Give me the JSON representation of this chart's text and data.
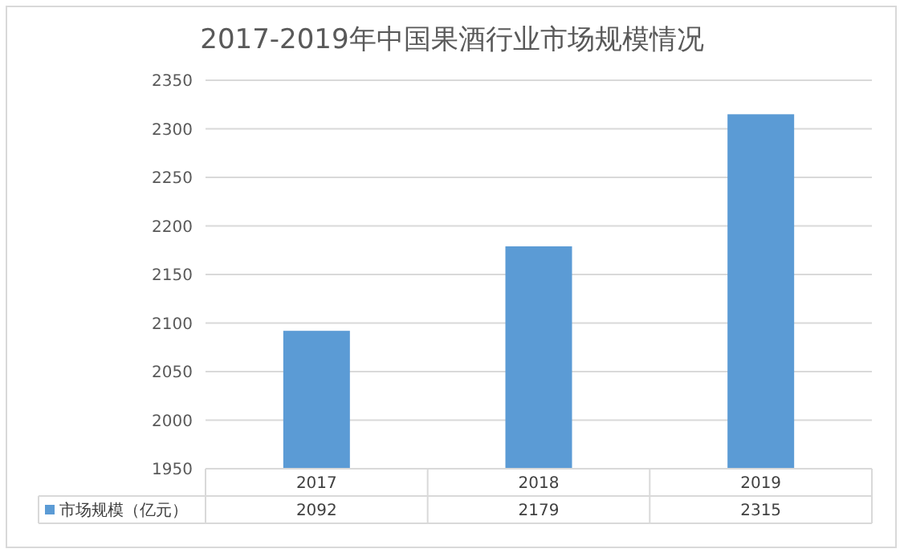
{
  "chart_data": {
    "type": "bar",
    "title": "2017-2019年中国果酒行业市场规模情况",
    "categories": [
      "2017",
      "2018",
      "2019"
    ],
    "series": [
      {
        "name": "市场规模（亿元）",
        "color": "#5b9bd5",
        "values": [
          2092,
          2179,
          2315
        ]
      }
    ],
    "ylim": [
      1950,
      2350
    ],
    "yticks": [
      1950,
      2000,
      2050,
      2100,
      2150,
      2200,
      2250,
      2300,
      2350
    ],
    "grid": "y",
    "legend": "bottom",
    "data_labels": true
  }
}
